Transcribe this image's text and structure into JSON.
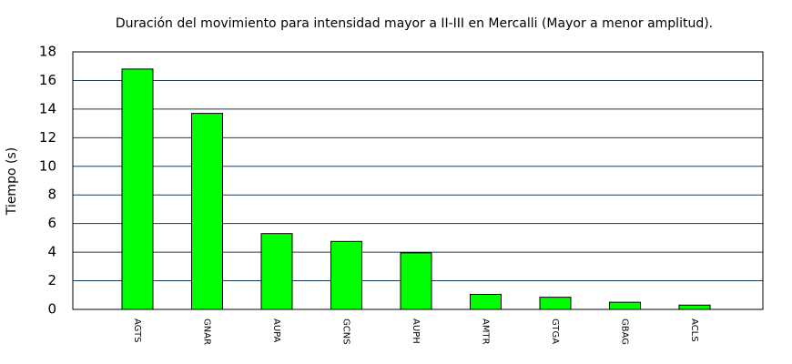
{
  "chart_data": {
    "type": "bar",
    "title": "Duración del movimiento para intensidad mayor a II-III en Mercalli (Mayor a menor amplitud).",
    "y_label": "Tiempo (s)",
    "categories": [
      "AGTS",
      "GNAR",
      "AUPA",
      "GCNS",
      "AUPH",
      "AMTR",
      "GTGA",
      "GBAG",
      "ACLS"
    ],
    "values": [
      16.8,
      13.7,
      5.3,
      4.75,
      3.95,
      1.05,
      0.85,
      0.5,
      0.3
    ],
    "color": "#00ff00",
    "ylim": [
      0,
      18
    ],
    "yticks": [
      0,
      2,
      4,
      6,
      8,
      10,
      12,
      14,
      16,
      18
    ],
    "grid": true
  }
}
